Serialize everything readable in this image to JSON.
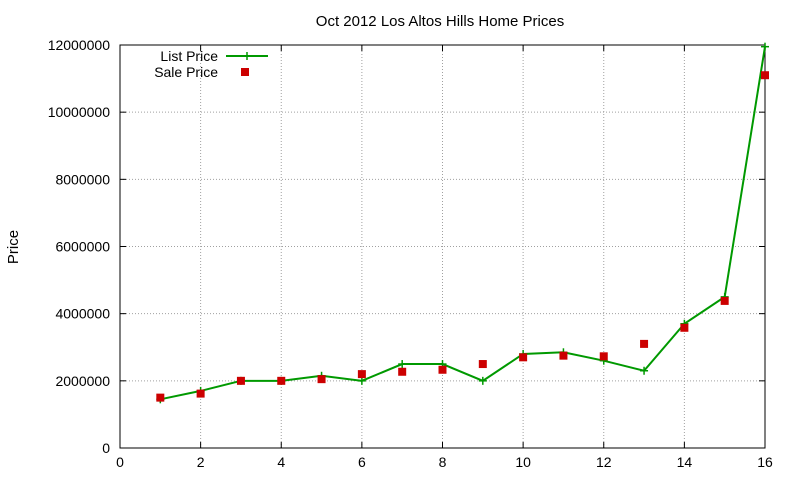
{
  "chart_data": {
    "type": "line",
    "title": "Oct 2012 Los Altos Hills Home Prices",
    "xlabel": "",
    "ylabel": "Price",
    "xlim": [
      0,
      16
    ],
    "ylim": [
      0,
      12000000
    ],
    "x_ticks": [
      0,
      2,
      4,
      6,
      8,
      10,
      12,
      14,
      16
    ],
    "y_ticks": [
      0,
      2000000,
      4000000,
      6000000,
      8000000,
      10000000,
      12000000
    ],
    "grid": true,
    "legend_position": "top-left",
    "series": [
      {
        "name": "List Price",
        "style": "line+cross",
        "color": "#009900",
        "points": [
          [
            1,
            1450000
          ],
          [
            2,
            1700000
          ],
          [
            3,
            2000000
          ],
          [
            4,
            2000000
          ],
          [
            5,
            2150000
          ],
          [
            6,
            2000000
          ],
          [
            7,
            2500000
          ],
          [
            8,
            2500000
          ],
          [
            9,
            2000000
          ],
          [
            10,
            2800000
          ],
          [
            11,
            2850000
          ],
          [
            12,
            2600000
          ],
          [
            13,
            2300000
          ],
          [
            14,
            3700000
          ],
          [
            15,
            4500000
          ],
          [
            16,
            11950000
          ]
        ]
      },
      {
        "name": "Sale Price",
        "style": "square",
        "color": "#cc0000",
        "points": [
          [
            1,
            1500000
          ],
          [
            2,
            1620000
          ],
          [
            3,
            2000000
          ],
          [
            4,
            2000000
          ],
          [
            5,
            2050000
          ],
          [
            6,
            2200000
          ],
          [
            7,
            2270000
          ],
          [
            8,
            2330000
          ],
          [
            9,
            2500000
          ],
          [
            10,
            2700000
          ],
          [
            11,
            2750000
          ],
          [
            12,
            2730000
          ],
          [
            13,
            3100000
          ],
          [
            14,
            3580000
          ],
          [
            15,
            4380000
          ],
          [
            16,
            11100000
          ]
        ]
      }
    ]
  }
}
